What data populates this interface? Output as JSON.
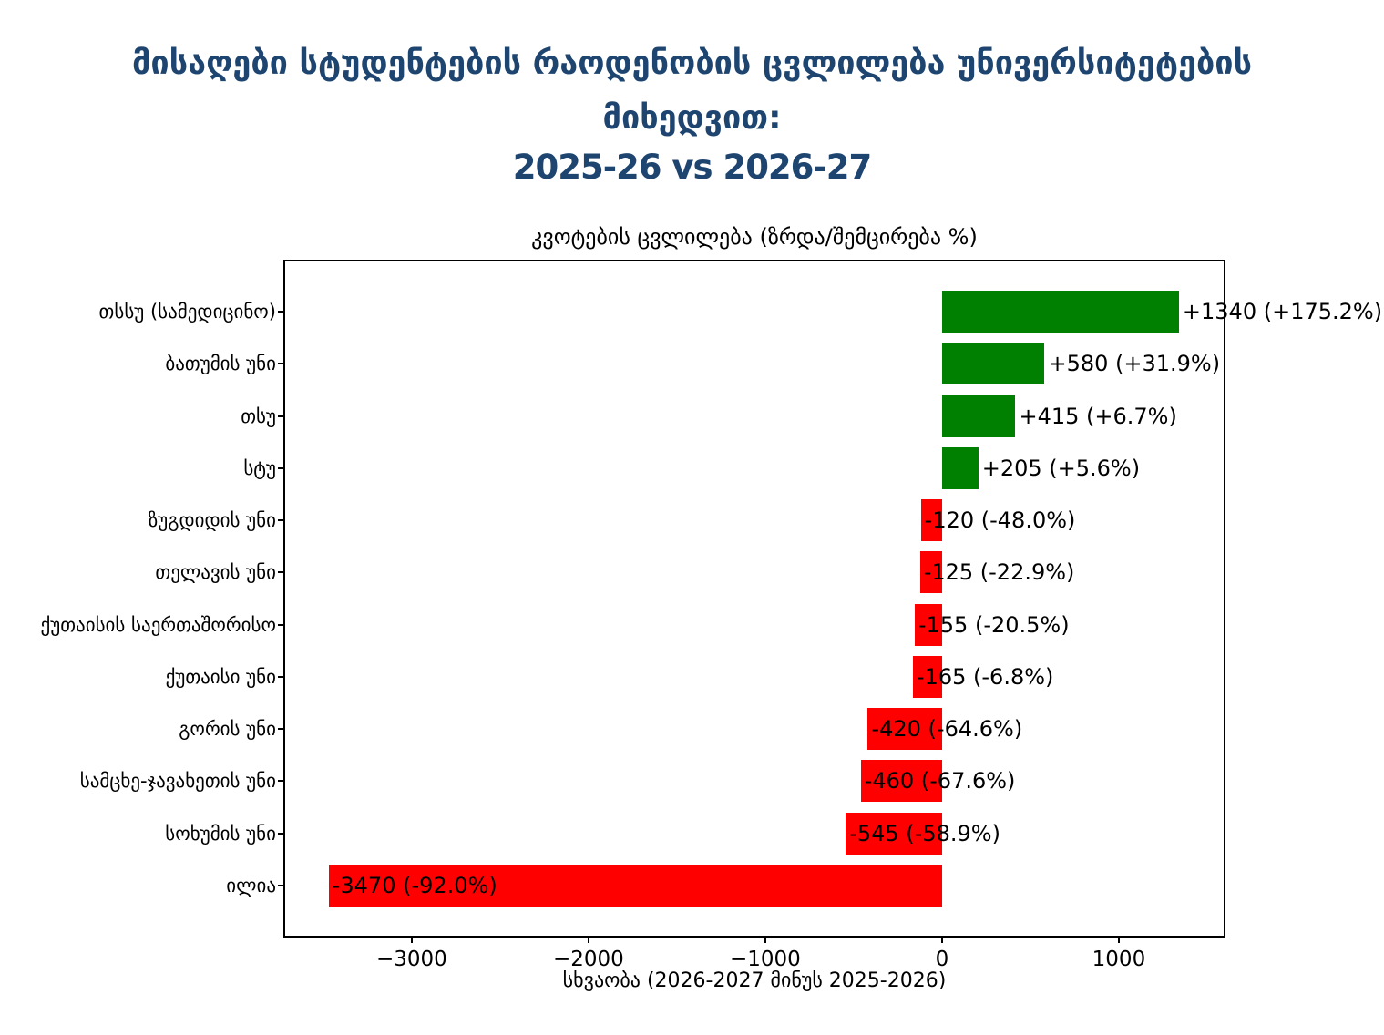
{
  "title": {
    "line1": "მისაღები სტუდენტების რაოდენობის ცვლილება უნივერსიტეტების",
    "line2": "მიხედვით:",
    "line3": "2025-26 vs 2026-27"
  },
  "colors": {
    "title_text": "#1e4570",
    "axis_text": "#000000",
    "background": "#ffffff"
  },
  "chart_data": {
    "type": "bar",
    "orientation": "horizontal",
    "title": "კვოტების ცვლილება (ზრდა/შემცირება %)",
    "xlabel": "სხვაობა (2026-2027 მინუს 2025-2026)",
    "categories": [
      "თსსუ (სამედიცინო)",
      "ბათუმის უნი",
      "თსუ",
      "სტუ",
      "ზუგდიდის უნი",
      "თელავის უნი",
      "ქუთაისის საერთაშორისო",
      "ქუთაისი უნი",
      "გორის უნი",
      "სამცხე-ჯავახეთის უნი",
      "სოხუმის უნი",
      "ილია"
    ],
    "values": [
      1340,
      580,
      415,
      205,
      -120,
      -125,
      -155,
      -165,
      -420,
      -460,
      -545,
      -3470
    ],
    "percent_change": [
      175.2,
      31.9,
      6.7,
      5.6,
      -48.0,
      -22.9,
      -20.5,
      -6.8,
      -64.6,
      -67.6,
      -58.9,
      -92.0
    ],
    "bar_labels": [
      "+1340 (+175.2%)",
      "+580 (+31.9%)",
      "+415 (+6.7%)",
      "+205 (+5.6%)",
      "-120 (-48.0%)",
      "-125 (-22.9%)",
      "-155 (-20.5%)",
      "-165 (-6.8%)",
      "-420 (-64.6%)",
      "-460 (-67.6%)",
      "-545 (-58.9%)",
      "-3470 (-92.0%)"
    ],
    "xticks": [
      -3000,
      -2000,
      -1000,
      0,
      1000
    ],
    "xtick_labels": [
      "−3000",
      "−2000",
      "−1000",
      "0",
      "1000"
    ],
    "xlim": [
      -3716,
      1593
    ],
    "bar_colors": {
      "positive": "#008000",
      "negative": "#ff0000"
    },
    "grid": false,
    "legend": null
  }
}
